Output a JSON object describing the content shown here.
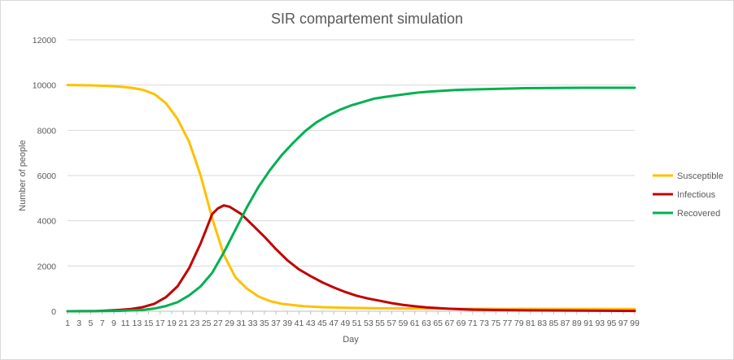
{
  "chart_data": {
    "type": "line",
    "title": "SIR compartement simulation",
    "xlabel": "Day",
    "ylabel": "Number  of people",
    "ylim": [
      0,
      12000
    ],
    "yticks": [
      0,
      2000,
      4000,
      6000,
      8000,
      10000,
      12000
    ],
    "xlim": [
      1,
      99
    ],
    "x_tick_labels": [
      "1",
      "3",
      "5",
      "7",
      "9",
      "11",
      "13",
      "15",
      "17",
      "19",
      "21",
      "23",
      "25",
      "27",
      "29",
      "31",
      "33",
      "35",
      "37",
      "39",
      "41",
      "43",
      "45",
      "47",
      "49",
      "51",
      "53",
      "55",
      "57",
      "59",
      "61",
      "63",
      "65",
      "67",
      "69",
      "71",
      "73",
      "75",
      "77",
      "79",
      "81",
      "83",
      "85",
      "87",
      "89",
      "91",
      "93",
      "95",
      "97",
      "99"
    ],
    "grid": true,
    "legend_position": "right",
    "series": [
      {
        "name": "Susceptible",
        "color": "#FFC000",
        "points": [
          [
            1,
            10000
          ],
          [
            5,
            9990
          ],
          [
            8,
            9960
          ],
          [
            10,
            9930
          ],
          [
            12,
            9880
          ],
          [
            14,
            9790
          ],
          [
            16,
            9600
          ],
          [
            18,
            9200
          ],
          [
            20,
            8500
          ],
          [
            22,
            7500
          ],
          [
            24,
            6000
          ],
          [
            26,
            4100
          ],
          [
            28,
            2500
          ],
          [
            30,
            1500
          ],
          [
            32,
            1000
          ],
          [
            34,
            650
          ],
          [
            36,
            450
          ],
          [
            38,
            330
          ],
          [
            40,
            270
          ],
          [
            42,
            220
          ],
          [
            45,
            180
          ],
          [
            50,
            150
          ],
          [
            55,
            130
          ],
          [
            60,
            120
          ],
          [
            70,
            110
          ],
          [
            80,
            105
          ],
          [
            99,
            100
          ]
        ]
      },
      {
        "name": "Infectious",
        "color": "#C00000",
        "points": [
          [
            1,
            0
          ],
          [
            6,
            10
          ],
          [
            8,
            30
          ],
          [
            10,
            60
          ],
          [
            12,
            100
          ],
          [
            14,
            180
          ],
          [
            16,
            330
          ],
          [
            18,
            620
          ],
          [
            20,
            1100
          ],
          [
            22,
            1900
          ],
          [
            24,
            3000
          ],
          [
            26,
            4300
          ],
          [
            27,
            4550
          ],
          [
            28,
            4680
          ],
          [
            29,
            4620
          ],
          [
            31,
            4300
          ],
          [
            33,
            3800
          ],
          [
            35,
            3300
          ],
          [
            37,
            2750
          ],
          [
            39,
            2250
          ],
          [
            41,
            1850
          ],
          [
            43,
            1550
          ],
          [
            45,
            1280
          ],
          [
            47,
            1050
          ],
          [
            49,
            850
          ],
          [
            51,
            680
          ],
          [
            53,
            560
          ],
          [
            55,
            460
          ],
          [
            57,
            360
          ],
          [
            59,
            280
          ],
          [
            61,
            220
          ],
          [
            63,
            170
          ],
          [
            65,
            140
          ],
          [
            67,
            110
          ],
          [
            69,
            90
          ],
          [
            71,
            70
          ],
          [
            75,
            55
          ],
          [
            80,
            40
          ],
          [
            90,
            25
          ],
          [
            99,
            15
          ]
        ]
      },
      {
        "name": "Recovered",
        "color": "#00B050",
        "points": [
          [
            1,
            0
          ],
          [
            8,
            10
          ],
          [
            10,
            20
          ],
          [
            12,
            40
          ],
          [
            14,
            60
          ],
          [
            16,
            120
          ],
          [
            18,
            230
          ],
          [
            20,
            400
          ],
          [
            22,
            700
          ],
          [
            24,
            1100
          ],
          [
            26,
            1700
          ],
          [
            28,
            2600
          ],
          [
            30,
            3600
          ],
          [
            32,
            4600
          ],
          [
            34,
            5500
          ],
          [
            36,
            6250
          ],
          [
            38,
            6900
          ],
          [
            40,
            7450
          ],
          [
            42,
            7950
          ],
          [
            44,
            8350
          ],
          [
            46,
            8650
          ],
          [
            48,
            8900
          ],
          [
            50,
            9100
          ],
          [
            52,
            9250
          ],
          [
            54,
            9400
          ],
          [
            56,
            9480
          ],
          [
            58,
            9550
          ],
          [
            60,
            9620
          ],
          [
            62,
            9680
          ],
          [
            64,
            9720
          ],
          [
            66,
            9750
          ],
          [
            68,
            9780
          ],
          [
            70,
            9800
          ],
          [
            75,
            9830
          ],
          [
            80,
            9860
          ],
          [
            90,
            9880
          ],
          [
            99,
            9880
          ]
        ]
      }
    ]
  }
}
